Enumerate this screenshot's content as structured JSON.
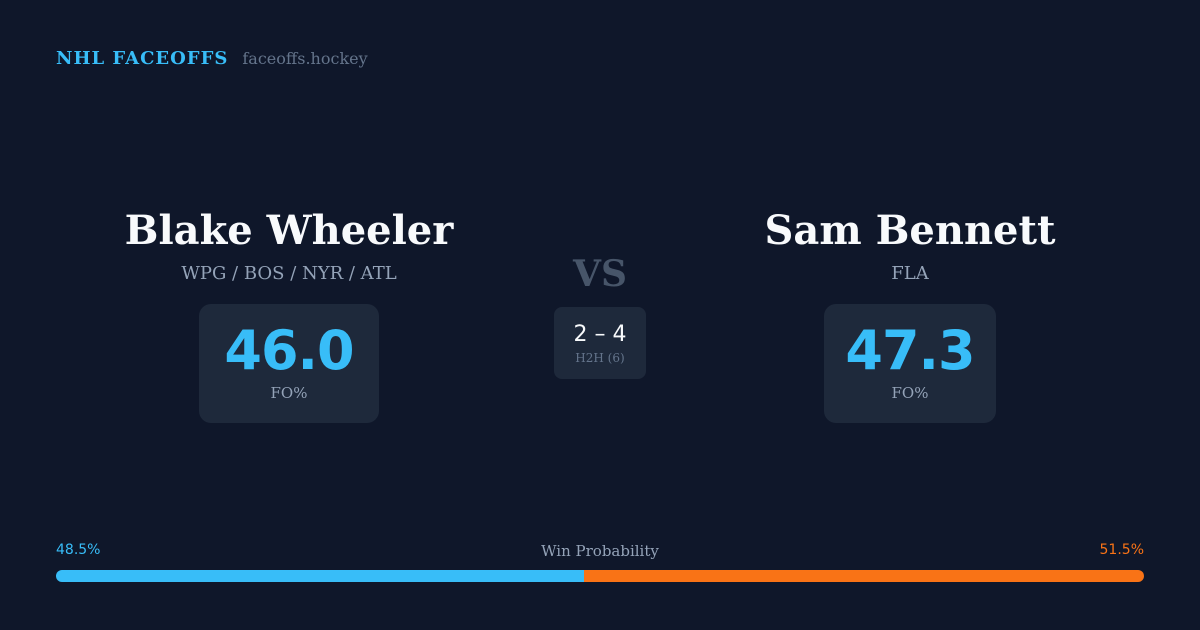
{
  "brand": {
    "name": "NHL FACEOFFS",
    "domain": "faceoffs.hockey"
  },
  "player_left": {
    "name": "Blake Wheeler",
    "teams": "WPG / BOS / NYR / ATL",
    "stat_value": "46.0",
    "stat_label": "FO%"
  },
  "player_right": {
    "name": "Sam Bennett",
    "teams": "FLA",
    "stat_value": "47.3",
    "stat_label": "FO%"
  },
  "vs_label": "VS",
  "h2h": {
    "score": "2 – 4",
    "label": "H2H (6)"
  },
  "win_probability": {
    "title": "Win Probability",
    "left_label": "48.5%",
    "right_label": "51.5%",
    "left_value": 48.5,
    "right_value": 51.5,
    "left_color": "#38bdf8",
    "right_color": "#f97316"
  },
  "colors": {
    "background": "#0f172a",
    "card": "#1e293b",
    "accent": "#38bdf8",
    "secondary_accent": "#f97316"
  }
}
